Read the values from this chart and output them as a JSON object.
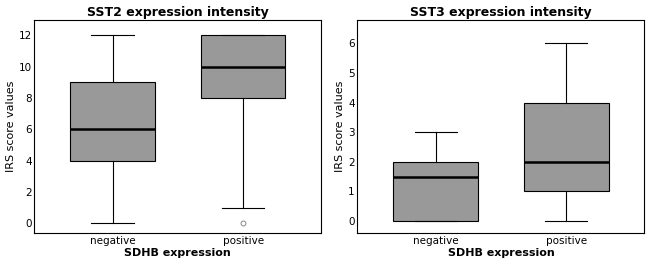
{
  "sst2": {
    "title": "SST2 expression intensity",
    "xlabel": "SDHB expression",
    "ylabel": "IRS score values",
    "categories": [
      "negative",
      "positive"
    ],
    "boxes": [
      {
        "whislo": 0,
        "q1": 4,
        "med": 6,
        "q3": 9,
        "whishi": 12,
        "fliers": []
      },
      {
        "whislo": 1,
        "q1": 8,
        "med": 10,
        "q3": 12,
        "whishi": 12,
        "fliers": [
          0
        ]
      }
    ],
    "ylim": [
      -0.6,
      13
    ],
    "yticks": [
      0,
      2,
      4,
      6,
      8,
      10,
      12
    ]
  },
  "sst3": {
    "title": "SST3 expression intensity",
    "xlabel": "SDHB expression",
    "ylabel": "IRS score values",
    "categories": [
      "negative",
      "positive"
    ],
    "boxes": [
      {
        "whislo": 0,
        "q1": 0,
        "med": 1.5,
        "q3": 2,
        "whishi": 3,
        "fliers": []
      },
      {
        "whislo": 0,
        "q1": 1,
        "med": 2,
        "q3": 4,
        "whishi": 6,
        "fliers": []
      }
    ],
    "ylim": [
      -0.4,
      6.8
    ],
    "yticks": [
      0,
      1,
      2,
      3,
      4,
      5,
      6
    ]
  },
  "box_color": "#999999",
  "median_color": "#000000",
  "whisker_color": "#000000",
  "flier_color": "#888888",
  "title_fontsize": 9,
  "label_fontsize": 8,
  "tick_fontsize": 7.5,
  "background_color": "#ffffff"
}
